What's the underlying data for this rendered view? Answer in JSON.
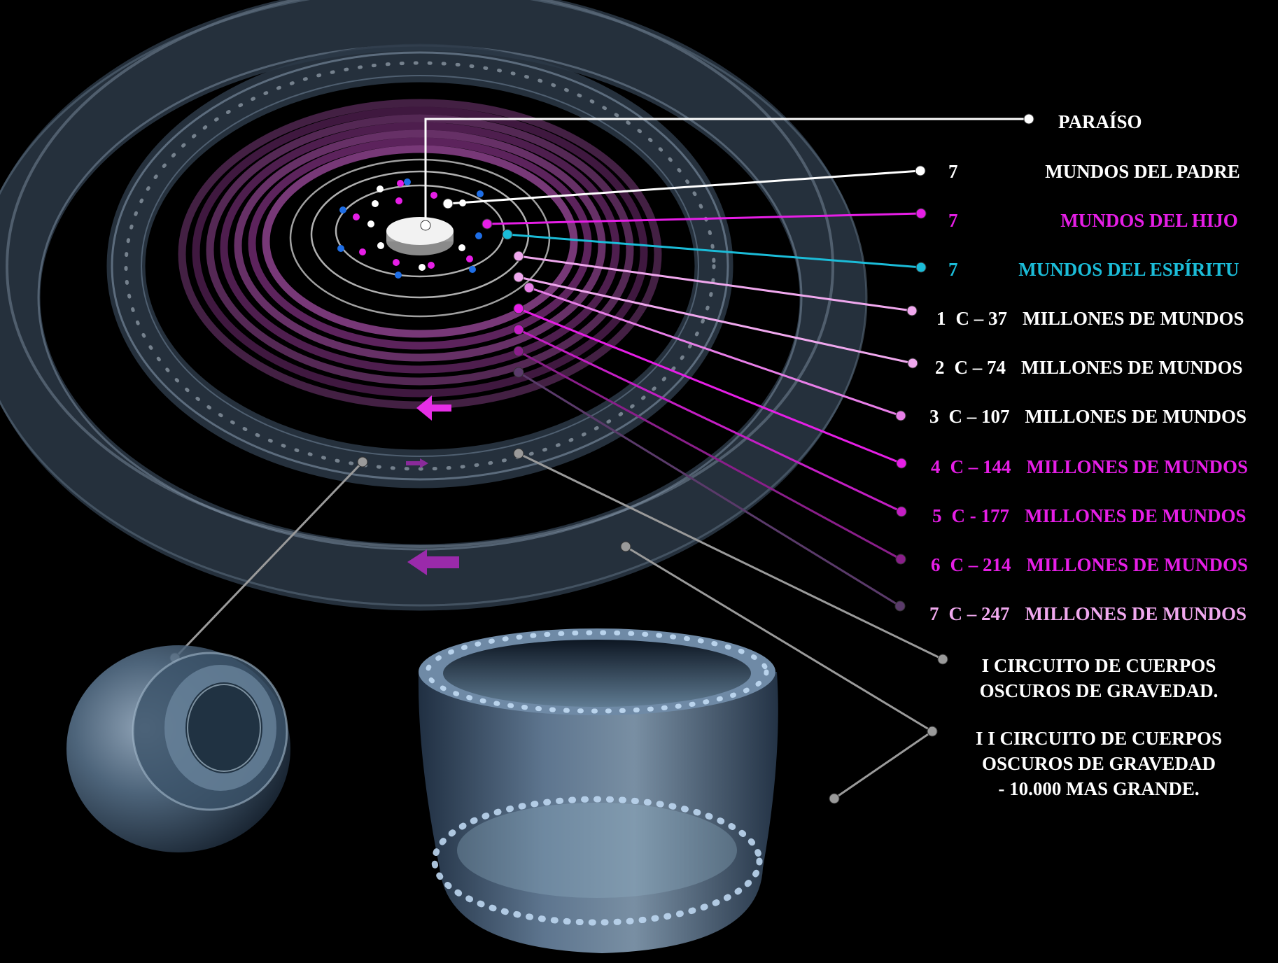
{
  "colors": {
    "white": "#ffffff",
    "magenta": "#e61ee6",
    "cyan": "#1bbcd8",
    "pink": "#f0a8ee",
    "gray": "#9a9a9a",
    "purple": "#6a2a8a"
  },
  "labels": {
    "paraiso": "PARAÍSO",
    "padre": {
      "num": "7",
      "name": "MUNDOS DEL PADRE"
    },
    "hijo": {
      "num": "7",
      "name": "MUNDOS DEL HIJO"
    },
    "espiritu": {
      "num": "7",
      "name": "MUNDOS DEL ESPÍRITU"
    },
    "circuits": [
      {
        "num": "1",
        "code": "C – 37",
        "name": "MILLONES DE MUNDOS"
      },
      {
        "num": "2",
        "code": "C – 74",
        "name": "MILLONES DE MUNDOS"
      },
      {
        "num": "3",
        "code": "C – 107",
        "name": "MILLONES DE MUNDOS"
      },
      {
        "num": "4",
        "code": "C – 144",
        "name": "MILLONES DE MUNDOS"
      },
      {
        "num": "5",
        "code": "C - 177",
        "name": "MILLONES DE MUNDOS"
      },
      {
        "num": "6",
        "code": "C – 214",
        "name": "MILLONES DE MUNDOS"
      },
      {
        "num": "7",
        "code": "C – 247",
        "name": "MILLONES DE MUNDOS"
      }
    ],
    "dark1": {
      "line1": "I   CIRCUITO DE  CUERPOS",
      "line2": "OSCUROS DE GRAVEDAD."
    },
    "dark2": {
      "line1": "I I   CIRCUITO DE CUERPOS",
      "line2": "OSCUROS  DE GRAVEDAD",
      "line3": "- 10.000   MAS GRANDE."
    }
  }
}
